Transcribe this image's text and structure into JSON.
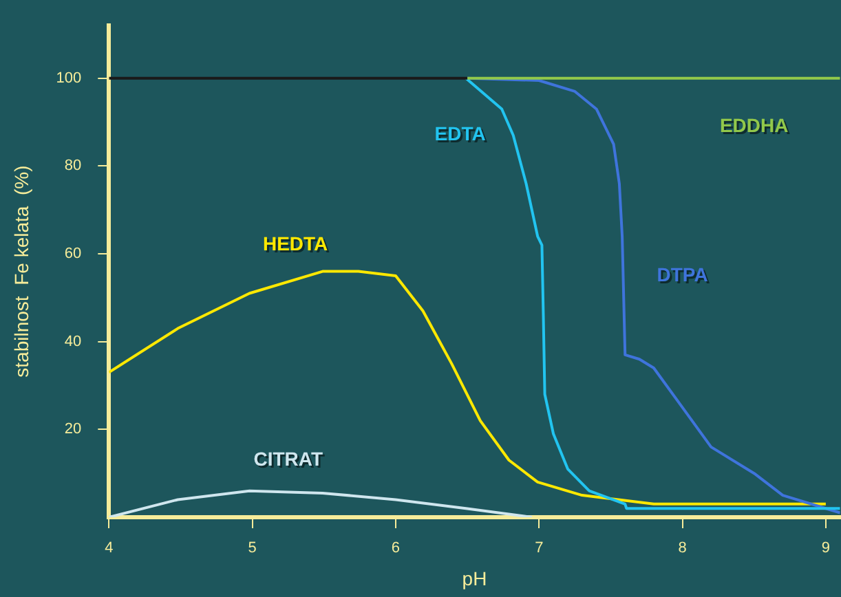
{
  "chart_data": {
    "type": "line",
    "xlabel": "pH",
    "ylabel": "stabilnost  Fe kelata  (%)",
    "xlim": [
      4,
      9.1
    ],
    "ylim": [
      0,
      112
    ],
    "xticks": [
      4,
      5,
      6,
      7,
      8,
      9
    ],
    "yticks": [
      20,
      40,
      60,
      80,
      100
    ],
    "grid": false,
    "legend": false,
    "series": [
      {
        "color": "#1a1a1a",
        "x": [
          4,
          6.5
        ],
        "values": [
          100,
          100
        ]
      },
      {
        "name": "EDDHA",
        "color": "#92c84a",
        "x": [
          6.5,
          9.1
        ],
        "values": [
          100,
          100
        ]
      },
      {
        "name": "EDTA",
        "color": "#22c4f0",
        "x": [
          6.49,
          6.74,
          6.82,
          6.91,
          6.99,
          7.02,
          7.03,
          7.04,
          7.1,
          7.2,
          7.35,
          7.6,
          7.61,
          9.1
        ],
        "values": [
          100,
          93,
          87,
          76,
          64,
          62,
          46,
          28,
          19,
          11,
          6,
          3,
          2,
          2
        ]
      },
      {
        "name": "DTPA",
        "color": "#3f74dc",
        "x": [
          6.5,
          7.0,
          7.25,
          7.4,
          7.52,
          7.56,
          7.58,
          7.6,
          7.7,
          7.8,
          8.0,
          8.2,
          8.5,
          8.7,
          9.0,
          9.1
        ],
        "values": [
          100,
          99.5,
          97,
          93,
          85,
          76,
          64,
          37,
          36,
          34,
          25,
          16,
          10,
          5,
          2,
          1
        ]
      },
      {
        "name": "HEDTA",
        "color": "#ffe800",
        "x": [
          4,
          4.48,
          4.98,
          5.49,
          5.74,
          6,
          6.19,
          6.39,
          6.59,
          6.79,
          6.99,
          7.3,
          7.8,
          8.5,
          9.0
        ],
        "values": [
          33,
          43,
          51,
          56,
          56,
          55,
          47,
          35,
          22,
          13,
          8,
          5,
          3,
          3,
          3
        ]
      },
      {
        "name": "CITRAT",
        "color": "#cfe6ee",
        "x": [
          4,
          4.48,
          4.98,
          5.49,
          6,
          6.49,
          6.95
        ],
        "values": [
          0,
          4,
          6,
          5.5,
          4,
          2,
          0
        ]
      }
    ]
  }
}
